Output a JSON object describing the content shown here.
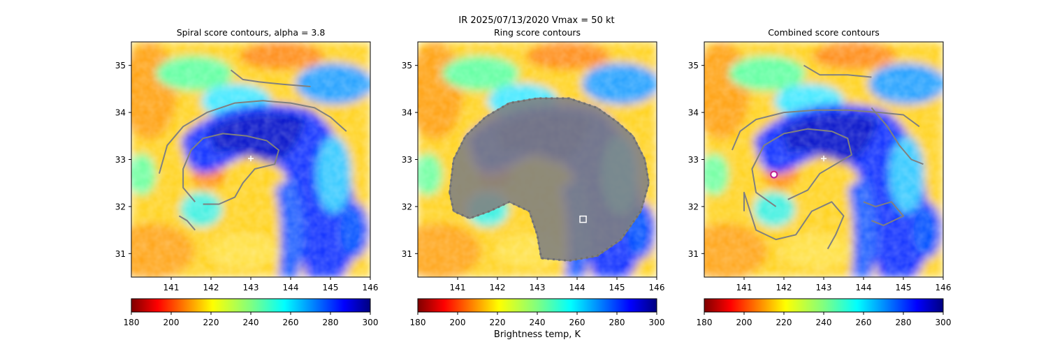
{
  "suptitle": "IR  2025/07/13/2020    Vmax = 50 kt",
  "colorbar_label": "Brightness temp, K",
  "chart_data": [
    {
      "type": "heatmap",
      "title": "Spiral score contours, alpha =  3.8",
      "xlim": [
        140,
        146
      ],
      "ylim": [
        30.5,
        35.5
      ],
      "xticks": [
        141,
        142,
        143,
        144,
        145,
        146
      ],
      "yticks": [
        31,
        32,
        33,
        34,
        35
      ],
      "colorbar": {
        "min": 180,
        "max": 300,
        "ticks": [
          180,
          200,
          220,
          240,
          260,
          280,
          300
        ],
        "cmap": "jet_r"
      },
      "contour_color": "#808080",
      "contours": [
        [
          [
            140.7,
            32.7
          ],
          [
            140.9,
            33.3
          ],
          [
            141.3,
            33.7
          ],
          [
            141.9,
            34.0
          ],
          [
            142.6,
            34.2
          ],
          [
            143.3,
            34.25
          ],
          [
            144.0,
            34.2
          ],
          [
            144.6,
            34.1
          ],
          [
            145.0,
            33.9
          ],
          [
            145.4,
            33.6
          ]
        ],
        [
          [
            141.6,
            32.1
          ],
          [
            141.3,
            32.4
          ],
          [
            141.3,
            32.8
          ],
          [
            141.5,
            33.2
          ],
          [
            141.8,
            33.45
          ],
          [
            142.3,
            33.55
          ],
          [
            142.9,
            33.5
          ],
          [
            143.4,
            33.4
          ],
          [
            143.7,
            33.2
          ],
          [
            143.6,
            32.9
          ],
          [
            143.1,
            32.8
          ],
          [
            142.8,
            32.5
          ],
          [
            142.6,
            32.2
          ],
          [
            142.2,
            32.05
          ],
          [
            141.8,
            32.05
          ]
        ],
        [
          [
            142.5,
            34.9
          ],
          [
            142.8,
            34.7
          ],
          [
            143.2,
            34.65
          ],
          [
            143.8,
            34.6
          ],
          [
            144.5,
            34.55
          ]
        ],
        [
          [
            141.2,
            31.8
          ],
          [
            141.4,
            31.7
          ],
          [
            141.6,
            31.5
          ]
        ]
      ],
      "markers": [
        {
          "symbol": "plus",
          "x": 143.0,
          "y": 33.02,
          "color": "#ffffff"
        }
      ]
    },
    {
      "type": "heatmap",
      "title": "Ring score contours",
      "xlim": [
        140,
        146
      ],
      "ylim": [
        30.5,
        35.5
      ],
      "xticks": [
        141,
        142,
        143,
        144,
        145,
        146
      ],
      "yticks": [
        31,
        32,
        33,
        34,
        35
      ],
      "colorbar": {
        "min": 180,
        "max": 300,
        "ticks": [
          180,
          200,
          220,
          240,
          260,
          280,
          300
        ],
        "cmap": "jet_r"
      },
      "contour_color": "#808080",
      "ring_region": [
        [
          140.8,
          32.3
        ],
        [
          140.9,
          33.0
        ],
        [
          141.2,
          33.5
        ],
        [
          141.7,
          33.9
        ],
        [
          142.3,
          34.2
        ],
        [
          143.0,
          34.3
        ],
        [
          143.8,
          34.3
        ],
        [
          144.5,
          34.1
        ],
        [
          145.0,
          33.8
        ],
        [
          145.4,
          33.5
        ],
        [
          145.7,
          33.0
        ],
        [
          145.8,
          32.5
        ],
        [
          145.6,
          31.9
        ],
        [
          145.1,
          31.3
        ],
        [
          144.5,
          30.95
        ],
        [
          143.8,
          30.85
        ],
        [
          143.1,
          30.9
        ],
        [
          143.0,
          31.4
        ],
        [
          142.8,
          31.9
        ],
        [
          142.3,
          32.1
        ],
        [
          141.8,
          31.9
        ],
        [
          141.3,
          31.75
        ],
        [
          140.9,
          31.9
        ]
      ],
      "markers": [
        {
          "symbol": "square",
          "x": 144.15,
          "y": 31.73,
          "color": "#ffffff"
        }
      ]
    },
    {
      "type": "heatmap",
      "title": "Combined score contours",
      "xlim": [
        140,
        146
      ],
      "ylim": [
        30.5,
        35.5
      ],
      "xticks": [
        141,
        142,
        143,
        144,
        145,
        146
      ],
      "yticks": [
        31,
        32,
        33,
        34,
        35
      ],
      "colorbar": {
        "min": 180,
        "max": 300,
        "ticks": [
          180,
          200,
          220,
          240,
          260,
          280,
          300
        ],
        "cmap": "jet_r"
      },
      "contour_color": "#808080",
      "contours": [
        [
          [
            140.7,
            33.2
          ],
          [
            140.9,
            33.6
          ],
          [
            141.3,
            33.85
          ],
          [
            142.0,
            34.0
          ],
          [
            142.8,
            34.05
          ],
          [
            143.6,
            34.05
          ],
          [
            144.4,
            34.0
          ],
          [
            145.0,
            33.95
          ],
          [
            145.4,
            33.7
          ]
        ],
        [
          [
            141.8,
            32.0
          ],
          [
            141.3,
            32.3
          ],
          [
            141.2,
            32.8
          ],
          [
            141.5,
            33.3
          ],
          [
            142.0,
            33.55
          ],
          [
            142.6,
            33.65
          ],
          [
            143.2,
            33.6
          ],
          [
            143.6,
            33.45
          ],
          [
            143.7,
            33.1
          ],
          [
            143.3,
            32.9
          ],
          [
            142.9,
            32.7
          ],
          [
            142.6,
            32.35
          ],
          [
            142.1,
            32.15
          ]
        ],
        [
          [
            141.0,
            31.9
          ],
          [
            141.0,
            32.3
          ],
          [
            141.3,
            31.5
          ],
          [
            141.8,
            31.3
          ],
          [
            142.3,
            31.4
          ],
          [
            142.7,
            31.9
          ],
          [
            143.2,
            32.1
          ],
          [
            143.5,
            31.8
          ],
          [
            143.3,
            31.4
          ],
          [
            143.1,
            31.1
          ]
        ],
        [
          [
            142.5,
            35.0
          ],
          [
            142.9,
            34.8
          ],
          [
            143.6,
            34.8
          ],
          [
            144.2,
            34.75
          ]
        ],
        [
          [
            144.2,
            34.1
          ],
          [
            144.6,
            33.7
          ],
          [
            144.9,
            33.3
          ],
          [
            145.2,
            33.0
          ],
          [
            145.5,
            32.9
          ]
        ],
        [
          [
            144.0,
            32.1
          ],
          [
            144.3,
            32.0
          ],
          [
            144.7,
            32.1
          ],
          [
            145.0,
            31.8
          ],
          [
            144.5,
            31.6
          ],
          [
            144.2,
            31.7
          ]
        ]
      ],
      "markers": [
        {
          "symbol": "plus",
          "x": 143.0,
          "y": 33.02,
          "color": "#ffffff"
        },
        {
          "symbol": "circle",
          "x": 141.75,
          "y": 32.68,
          "color": "#ffffff",
          "edge": "#c02090"
        }
      ]
    }
  ]
}
